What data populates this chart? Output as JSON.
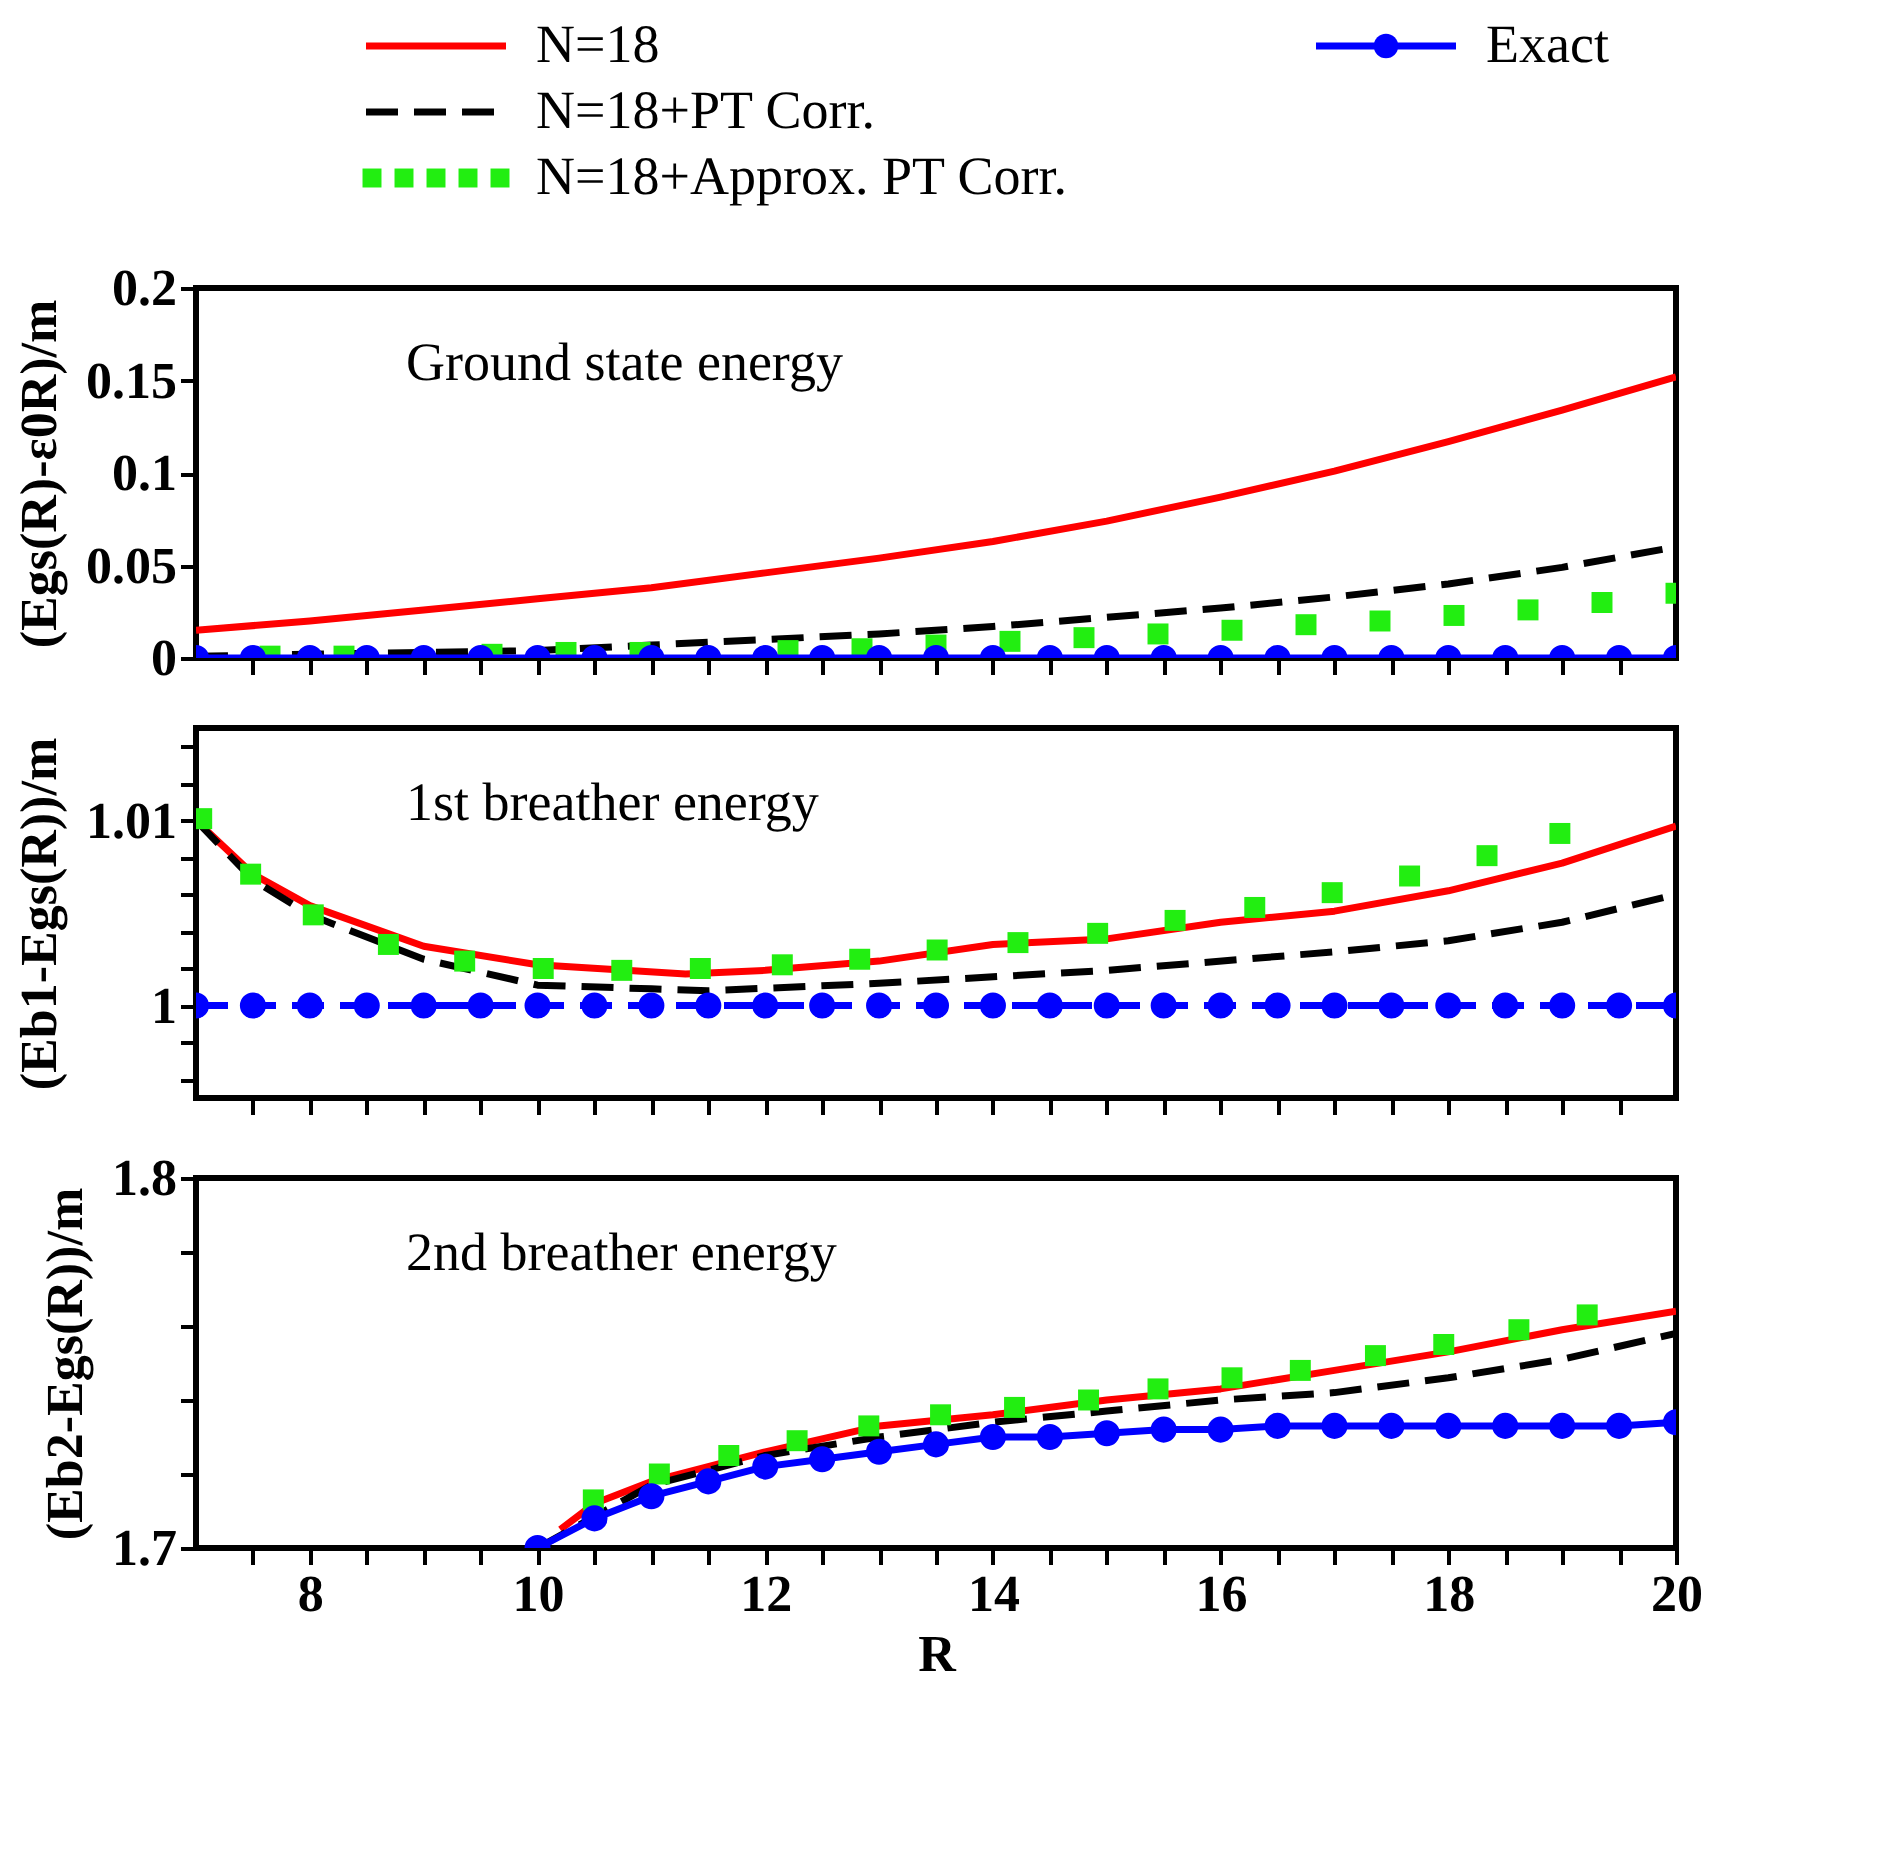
{
  "chart_data": [
    {
      "type": "line",
      "legend": "top",
      "tick_labels": "y",
      "ylabel": "(Egs(R)-ε0R)/m",
      "annotations": [
        "Ground state energy"
      ],
      "xlim": [
        7,
        20
      ],
      "xticks": [
        {
          "value": 7.5,
          "label": null
        },
        {
          "value": 8,
          "label": null
        },
        {
          "value": 8.5,
          "label": null
        },
        {
          "value": 9,
          "label": null
        },
        {
          "value": 9.5,
          "label": null
        },
        {
          "value": 10,
          "label": null
        },
        {
          "value": 10.5,
          "label": null
        },
        {
          "value": 11,
          "label": null
        },
        {
          "value": 11.5,
          "label": null
        },
        {
          "value": 12,
          "label": null
        },
        {
          "value": 12.5,
          "label": null
        },
        {
          "value": 13,
          "label": null
        },
        {
          "value": 13.5,
          "label": null
        },
        {
          "value": 14,
          "label": null
        },
        {
          "value": 14.5,
          "label": null
        },
        {
          "value": 15,
          "label": null
        },
        {
          "value": 15.5,
          "label": null
        },
        {
          "value": 16,
          "label": null
        },
        {
          "value": 16.5,
          "label": null
        },
        {
          "value": 17,
          "label": null
        },
        {
          "value": 17.5,
          "label": null
        },
        {
          "value": 18,
          "label": null
        },
        {
          "value": 18.5,
          "label": null
        },
        {
          "value": 19,
          "label": null
        },
        {
          "value": 19.5,
          "label": null
        }
      ],
      "ylim": [
        0,
        0.2
      ],
      "yticks": [
        0,
        0.05,
        0.1,
        0.15,
        0.2
      ],
      "series": [
        {
          "name": "N=18",
          "color": "#ff0000",
          "line_style": "solid",
          "x": [
            7,
            8,
            9,
            10,
            11,
            12,
            13,
            14,
            15,
            16,
            17,
            18,
            19,
            20
          ],
          "values": [
            0.015,
            0.02,
            0.026,
            0.032,
            0.038,
            0.046,
            0.054,
            0.063,
            0.074,
            0.087,
            0.101,
            0.117,
            0.134,
            0.152
          ]
        },
        {
          "name": "N=18+PT Corr.",
          "color": "#000000",
          "line_style": "dashed",
          "x": [
            7,
            8,
            9,
            10,
            11,
            12,
            13,
            14,
            15,
            16,
            17,
            18,
            19,
            20
          ],
          "values": [
            0.001,
            0.002,
            0.003,
            0.004,
            0.007,
            0.01,
            0.013,
            0.017,
            0.022,
            0.027,
            0.033,
            0.04,
            0.049,
            0.06
          ]
        },
        {
          "name": "N=18+Approx. PT Corr.",
          "type": "scatter",
          "marker": "square",
          "color": "#22ee11",
          "x": [
            7.65,
            8.3,
            8.95,
            9.6,
            10.25,
            10.9,
            11.55,
            12.2,
            12.85,
            13.5,
            14.15,
            14.8,
            15.45,
            16.1,
            16.75,
            17.4,
            18.05,
            18.7,
            19.35,
            20
          ],
          "values": [
            0.001,
            0.001,
            null,
            0.002,
            0.003,
            0.003,
            null,
            0.004,
            0.005,
            0.007,
            0.009,
            0.011,
            0.013,
            0.015,
            0.018,
            0.02,
            0.023,
            0.026,
            0.03,
            0.035
          ]
        },
        {
          "name": "Exact",
          "color": "#0000ff",
          "line_style": "solid",
          "marker": "circle",
          "x": [
            7,
            7.5,
            8,
            8.5,
            9,
            9.5,
            10,
            10.5,
            11,
            11.5,
            12,
            12.5,
            13,
            13.5,
            14,
            14.5,
            15,
            15.5,
            16,
            16.5,
            17,
            17.5,
            18,
            18.5,
            19,
            19.5,
            20
          ],
          "values": [
            0,
            0,
            0,
            0,
            0,
            0,
            0,
            0,
            0,
            0,
            0,
            0,
            0,
            0,
            0,
            0,
            0,
            0,
            0,
            0,
            0,
            0,
            0,
            0,
            0,
            0,
            0
          ]
        }
      ]
    },
    {
      "type": "line",
      "tick_labels": "y",
      "ylabel": "(Eb1-Egs(R))/m",
      "annotations": [
        "1st breather energy"
      ],
      "xlim": [
        7,
        20
      ],
      "xticks": [
        {
          "value": 7.5,
          "label": null
        },
        {
          "value": 8,
          "label": null
        },
        {
          "value": 8.5,
          "label": null
        },
        {
          "value": 9,
          "label": null
        },
        {
          "value": 9.5,
          "label": null
        },
        {
          "value": 10,
          "label": null
        },
        {
          "value": 10.5,
          "label": null
        },
        {
          "value": 11,
          "label": null
        },
        {
          "value": 11.5,
          "label": null
        },
        {
          "value": 12,
          "label": null
        },
        {
          "value": 12.5,
          "label": null
        },
        {
          "value": 13,
          "label": null
        },
        {
          "value": 13.5,
          "label": null
        },
        {
          "value": 14,
          "label": null
        },
        {
          "value": 14.5,
          "label": null
        },
        {
          "value": 15,
          "label": null
        },
        {
          "value": 15.5,
          "label": null
        },
        {
          "value": 16,
          "label": null
        },
        {
          "value": 16.5,
          "label": null
        },
        {
          "value": 17,
          "label": null
        },
        {
          "value": 17.5,
          "label": null
        },
        {
          "value": 18,
          "label": null
        },
        {
          "value": 18.5,
          "label": null
        },
        {
          "value": 19,
          "label": null
        },
        {
          "value": 19.5,
          "label": null
        }
      ],
      "ylim": [
        0.995,
        1.015
      ],
      "yticks": [
        {
          "value": 0.996,
          "label": null
        },
        {
          "value": 0.998,
          "label": null
        },
        1,
        {
          "value": 1.002,
          "label": null
        },
        {
          "value": 1.004,
          "label": null
        },
        {
          "value": 1.006,
          "label": null
        },
        {
          "value": 1.008,
          "label": null
        },
        1.01,
        {
          "value": 1.012,
          "label": null
        },
        {
          "value": 1.014,
          "label": null
        }
      ],
      "series": [
        {
          "color": "#ff0000",
          "line_style": "solid",
          "x": [
            7,
            7.5,
            8,
            9,
            10,
            11.3,
            12,
            13,
            14,
            15,
            16,
            17,
            18,
            19,
            20
          ],
          "values": [
            1.01,
            1.0071,
            1.0054,
            1.0032,
            1.0022,
            1.0017,
            1.0019,
            1.0024,
            1.0033,
            1.0036,
            1.0045,
            1.0051,
            1.0062,
            1.0077,
            1.0097
          ]
        },
        {
          "color": "#000000",
          "line_style": "dashed",
          "x": [
            7,
            7.5,
            8,
            9,
            10,
            11,
            11.5,
            13,
            15,
            17,
            18,
            19,
            20
          ],
          "values": [
            1.01,
            1.0068,
            1.0049,
            1.0025,
            1.0011,
            1.0009,
            1.0008,
            1.0012,
            1.0019,
            1.0029,
            1.0035,
            1.0045,
            1.006
          ]
        },
        {
          "type": "scatter",
          "marker": "square",
          "color": "#22ee11",
          "x": [
            7.05,
            7.48,
            8.03,
            8.69,
            9.36,
            10.05,
            10.74,
            11.43,
            12.15,
            12.83,
            13.51,
            14.22,
            14.92,
            15.6,
            16.3,
            16.98,
            17.66,
            18.34,
            18.98
          ],
          "values": [
            1.0101,
            1.0071,
            1.0049,
            1.0033,
            1.0024,
            1.002,
            1.0019,
            1.002,
            1.0022,
            1.0025,
            1.003,
            1.0034,
            1.0039,
            1.0046,
            1.0053,
            1.0061,
            1.007,
            1.0081,
            1.0093
          ]
        },
        {
          "color": "#0000ff",
          "line_style": "dashed",
          "marker": "circle",
          "x": [
            7,
            7.5,
            8,
            8.5,
            9,
            9.5,
            10,
            10.5,
            11,
            11.5,
            12,
            12.5,
            13,
            13.5,
            14,
            14.5,
            15,
            15.5,
            16,
            16.5,
            17,
            17.5,
            18,
            18.5,
            19,
            19.5,
            20
          ],
          "values": [
            1,
            1,
            1,
            1,
            1,
            1,
            1,
            1,
            1,
            1,
            1,
            1,
            1,
            1,
            1,
            1,
            1,
            1,
            1,
            1,
            1,
            1,
            1,
            1,
            1,
            1,
            1
          ]
        }
      ]
    },
    {
      "type": "line",
      "xlabel": "R",
      "ylabel": "(Eb2-Egs(R))/m",
      "annotations": [
        "2nd breather energy"
      ],
      "xlim": [
        7,
        20
      ],
      "xticks": [
        {
          "value": 7.5,
          "label": null
        },
        8,
        {
          "value": 8.5,
          "label": null
        },
        {
          "value": 9,
          "label": null
        },
        {
          "value": 9.5,
          "label": null
        },
        10,
        {
          "value": 10.5,
          "label": null
        },
        {
          "value": 11,
          "label": null
        },
        {
          "value": 11.5,
          "label": null
        },
        12,
        {
          "value": 12.5,
          "label": null
        },
        {
          "value": 13,
          "label": null
        },
        {
          "value": 13.5,
          "label": null
        },
        14,
        {
          "value": 14.5,
          "label": null
        },
        {
          "value": 15,
          "label": null
        },
        {
          "value": 15.5,
          "label": null
        },
        16,
        {
          "value": 16.5,
          "label": null
        },
        {
          "value": 17,
          "label": null
        },
        {
          "value": 17.5,
          "label": null
        },
        18,
        {
          "value": 18.5,
          "label": null
        },
        {
          "value": 19,
          "label": null
        },
        {
          "value": 19.5,
          "label": null
        },
        20
      ],
      "ylim": [
        1.7,
        1.8
      ],
      "yticks": [
        1.7,
        {
          "value": 1.72,
          "label": null
        },
        {
          "value": 1.74,
          "label": null
        },
        {
          "value": 1.76,
          "label": null
        },
        {
          "value": 1.78,
          "label": null
        },
        1.8
      ],
      "series": [
        {
          "color": "#ff0000",
          "line_style": "solid",
          "x": [
            10.2,
            10.5,
            11,
            12,
            13,
            14,
            15,
            16,
            17,
            18,
            19,
            20
          ],
          "values": [
            1.705,
            1.712,
            1.718,
            1.726,
            1.733,
            1.736,
            1.74,
            1.743,
            1.748,
            1.753,
            1.759,
            1.764
          ]
        },
        {
          "color": "#000000",
          "line_style": "dashed",
          "x": [
            10,
            11,
            12,
            13,
            14,
            15,
            16,
            17,
            18,
            19,
            20
          ],
          "values": [
            1.7,
            1.717,
            1.725,
            1.73,
            1.734,
            1.737,
            1.74,
            1.742,
            1.746,
            1.751,
            1.758
          ]
        },
        {
          "type": "scatter",
          "marker": "square",
          "color": "#22ee11",
          "x": [
            10.49,
            11.07,
            11.68,
            12.28,
            12.91,
            13.54,
            14.19,
            14.84,
            15.45,
            16.1,
            16.7,
            17.36,
            17.96,
            18.62,
            19.22
          ],
          "values": [
            1.713,
            1.72,
            1.725,
            1.729,
            1.733,
            1.736,
            1.738,
            1.74,
            1.743,
            1.746,
            1.748,
            1.752,
            1.755,
            1.759,
            1.763
          ]
        },
        {
          "color": "#0000ff",
          "line_style": "solid",
          "marker": "circle",
          "x": [
            10,
            10.5,
            11,
            11.5,
            12,
            12.5,
            13,
            13.5,
            14,
            14.5,
            15,
            15.5,
            16,
            16.5,
            17,
            17.5,
            18,
            18.5,
            19,
            19.5,
            20
          ],
          "values": [
            1.7,
            1.708,
            1.714,
            1.718,
            1.722,
            1.724,
            1.726,
            1.728,
            1.73,
            1.73,
            1.731,
            1.732,
            1.732,
            1.733,
            1.733,
            1.733,
            1.733,
            1.733,
            1.733,
            1.733,
            1.734
          ]
        }
      ]
    }
  ]
}
